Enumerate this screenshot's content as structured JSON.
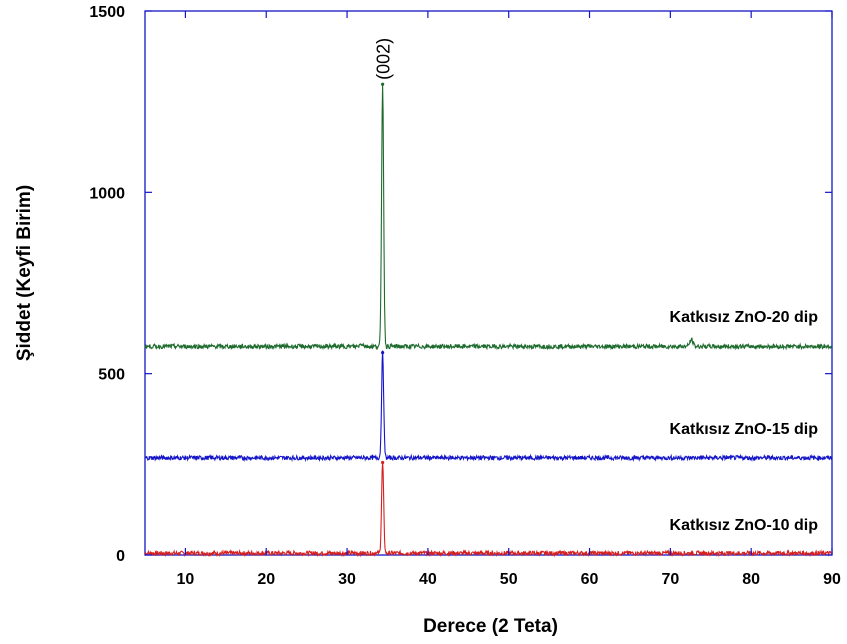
{
  "chart_data": {
    "type": "line",
    "title": "",
    "xlabel": "Derece (2 Teta)",
    "ylabel": "Şiddet (Keyfi Birim)",
    "xlim": [
      5,
      90
    ],
    "ylim": [
      0,
      1500
    ],
    "xticks": [
      10,
      20,
      30,
      40,
      50,
      60,
      70,
      80,
      90
    ],
    "yticks": [
      0,
      500,
      1000,
      1500
    ],
    "grid": false,
    "annotations": [
      {
        "text": "(002)",
        "x": 34.4,
        "y": 1310
      }
    ],
    "series": [
      {
        "name": "Katkısız ZnO-10 dip",
        "color": "#d42020",
        "baseline": 5,
        "peaks": [
          {
            "x": 34.4,
            "y": 255
          }
        ]
      },
      {
        "name": "Katkısız ZnO-15 dip",
        "color": "#1515c8",
        "baseline": 268,
        "peaks": [
          {
            "x": 34.4,
            "y": 558
          }
        ]
      },
      {
        "name": "Katkısız ZnO-20 dip",
        "color": "#1e6b2e",
        "baseline": 575,
        "peaks": [
          {
            "x": 34.4,
            "y": 1298
          }
        ]
      }
    ]
  }
}
